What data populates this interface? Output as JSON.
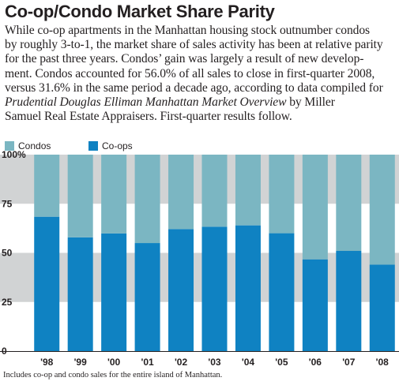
{
  "title": "Co-op/Condo Market Share Parity",
  "paragraph_lines": [
    "While co-op apartments in the Manhattan housing stock outnumber condos",
    "by roughly 3-to-1, the market share of sales activity has been at relative parity",
    "for the past three years. Condos’ gain was largely a result of new develop-",
    "ment. Condos accounted for 56.0% of all sales to close in first-quarter 2008,",
    "versus 31.6% in the same period a decade ago, according to data compiled for"
  ],
  "paragraph_last": {
    "italic": "Prudential Douglas Elliman Manhattan Market Overview",
    "after": " by Miller",
    "line2": "Samuel Real Estate Appraisers. First-quarter results follow."
  },
  "footnote": "Includes co-op and condo sales for the entire island of Manhattan.",
  "colors": {
    "condos": "#7bb6c2",
    "coops": "#0f82c2",
    "band_grey": "#d1d3d4",
    "text": "#231f20"
  },
  "chart_data": {
    "type": "bar",
    "stacked": true,
    "categories": [
      "'98",
      "'99",
      "'00",
      "'01",
      "'02",
      "'03",
      "'04",
      "'05",
      "'06",
      "'07",
      "'08"
    ],
    "series": [
      {
        "name": "Co-ops",
        "values": [
          68.4,
          57.9,
          59.9,
          55.0,
          62.1,
          63.3,
          64.0,
          60.0,
          46.7,
          51.0,
          44.0
        ]
      },
      {
        "name": "Condos",
        "values": [
          31.6,
          42.1,
          40.1,
          45.0,
          37.9,
          36.7,
          36.0,
          40.0,
          53.3,
          49.0,
          56.0
        ]
      }
    ],
    "yticks": [
      "0",
      "25",
      "50",
      "75",
      "100%"
    ],
    "ylim": [
      0,
      100
    ],
    "legend": [
      "Condos",
      "Co-ops"
    ],
    "legend_placement": "top-left"
  }
}
